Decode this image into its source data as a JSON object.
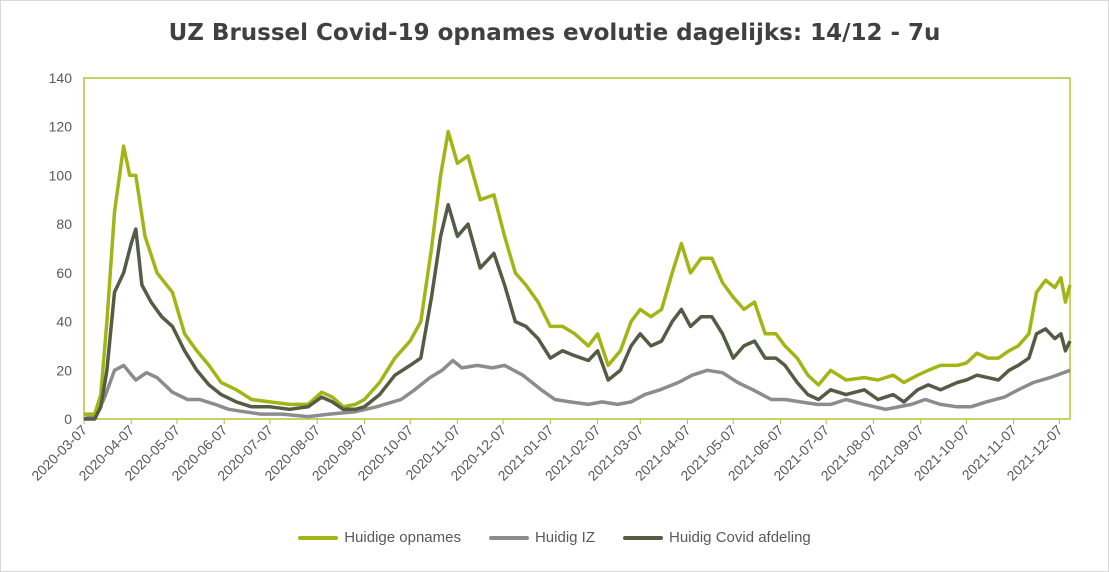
{
  "title": "UZ Brussel Covid-19 opnames evolutie dagelijks: 14/12 - 7u",
  "colors": {
    "opnames": "#a3b516",
    "iz": "#8c8c8c",
    "afdeling": "#545c45",
    "frame": "#b7c233"
  },
  "chart_data": {
    "type": "line",
    "title": "UZ Brussel Covid-19 opnames evolutie dagelijks: 14/12 - 7u",
    "xlabel": "",
    "ylabel": "",
    "ylim": [
      0,
      140
    ],
    "yticks": [
      0,
      20,
      40,
      60,
      80,
      100,
      120,
      140
    ],
    "x_start": "2020-03-07",
    "x_end": "2021-12-14",
    "xticks": [
      "2020-03-07",
      "2020-04-07",
      "2020-05-07",
      "2020-06-07",
      "2020-07-07",
      "2020-08-07",
      "2020-09-07",
      "2020-10-07",
      "2020-11-07",
      "2020-12-07",
      "2021-01-07",
      "2021-02-07",
      "2021-03-07",
      "2021-04-07",
      "2021-05-07",
      "2021-06-07",
      "2021-07-07",
      "2021-08-07",
      "2021-09-07",
      "2021-10-07",
      "2021-11-07",
      "2021-12-07"
    ],
    "grid": false,
    "legend_position": "bottom",
    "series": [
      {
        "name": "Huidige opnames",
        "color": "#a3b516",
        "points": [
          [
            "2020-03-07",
            2
          ],
          [
            "2020-03-14",
            2
          ],
          [
            "2020-03-18",
            10
          ],
          [
            "2020-03-22",
            40
          ],
          [
            "2020-03-27",
            85
          ],
          [
            "2020-04-02",
            112
          ],
          [
            "2020-04-06",
            100
          ],
          [
            "2020-04-10",
            100
          ],
          [
            "2020-04-16",
            75
          ],
          [
            "2020-04-24",
            60
          ],
          [
            "2020-05-04",
            52
          ],
          [
            "2020-05-12",
            35
          ],
          [
            "2020-05-20",
            28
          ],
          [
            "2020-05-28",
            22
          ],
          [
            "2020-06-05",
            15
          ],
          [
            "2020-06-15",
            12
          ],
          [
            "2020-06-25",
            8
          ],
          [
            "2020-07-07",
            7
          ],
          [
            "2020-07-20",
            6
          ],
          [
            "2020-08-01",
            6
          ],
          [
            "2020-08-10",
            11
          ],
          [
            "2020-08-17",
            9
          ],
          [
            "2020-08-24",
            5
          ],
          [
            "2020-09-01",
            6
          ],
          [
            "2020-09-07",
            8
          ],
          [
            "2020-09-17",
            15
          ],
          [
            "2020-09-27",
            25
          ],
          [
            "2020-10-07",
            32
          ],
          [
            "2020-10-14",
            40
          ],
          [
            "2020-10-21",
            70
          ],
          [
            "2020-10-27",
            100
          ],
          [
            "2020-11-01",
            118
          ],
          [
            "2020-11-07",
            105
          ],
          [
            "2020-11-14",
            108
          ],
          [
            "2020-11-22",
            90
          ],
          [
            "2020-12-01",
            92
          ],
          [
            "2020-12-08",
            75
          ],
          [
            "2020-12-15",
            60
          ],
          [
            "2020-12-22",
            55
          ],
          [
            "2020-12-30",
            48
          ],
          [
            "2021-01-07",
            38
          ],
          [
            "2021-01-15",
            38
          ],
          [
            "2021-01-23",
            35
          ],
          [
            "2021-02-01",
            30
          ],
          [
            "2021-02-07",
            35
          ],
          [
            "2021-02-14",
            22
          ],
          [
            "2021-02-22",
            28
          ],
          [
            "2021-03-01",
            40
          ],
          [
            "2021-03-07",
            45
          ],
          [
            "2021-03-14",
            42
          ],
          [
            "2021-03-21",
            45
          ],
          [
            "2021-03-28",
            60
          ],
          [
            "2021-04-03",
            72
          ],
          [
            "2021-04-09",
            60
          ],
          [
            "2021-04-16",
            66
          ],
          [
            "2021-04-23",
            66
          ],
          [
            "2021-04-30",
            56
          ],
          [
            "2021-05-07",
            50
          ],
          [
            "2021-05-14",
            45
          ],
          [
            "2021-05-21",
            48
          ],
          [
            "2021-05-28",
            35
          ],
          [
            "2021-06-04",
            35
          ],
          [
            "2021-06-10",
            30
          ],
          [
            "2021-06-18",
            25
          ],
          [
            "2021-06-25",
            18
          ],
          [
            "2021-07-02",
            14
          ],
          [
            "2021-07-10",
            20
          ],
          [
            "2021-07-20",
            16
          ],
          [
            "2021-08-01",
            17
          ],
          [
            "2021-08-10",
            16
          ],
          [
            "2021-08-20",
            18
          ],
          [
            "2021-08-27",
            15
          ],
          [
            "2021-09-05",
            18
          ],
          [
            "2021-09-12",
            20
          ],
          [
            "2021-09-20",
            22
          ],
          [
            "2021-10-01",
            22
          ],
          [
            "2021-10-07",
            23
          ],
          [
            "2021-10-14",
            27
          ],
          [
            "2021-10-21",
            25
          ],
          [
            "2021-10-28",
            25
          ],
          [
            "2021-11-04",
            28
          ],
          [
            "2021-11-10",
            30
          ],
          [
            "2021-11-17",
            35
          ],
          [
            "2021-11-22",
            52
          ],
          [
            "2021-11-28",
            57
          ],
          [
            "2021-12-04",
            54
          ],
          [
            "2021-12-08",
            58
          ],
          [
            "2021-12-11",
            48
          ],
          [
            "2021-12-14",
            55
          ]
        ]
      },
      {
        "name": "Huidig IZ",
        "color": "#8c8c8c",
        "points": [
          [
            "2020-03-07",
            0
          ],
          [
            "2020-03-15",
            2
          ],
          [
            "2020-03-20",
            8
          ],
          [
            "2020-03-27",
            20
          ],
          [
            "2020-04-02",
            22
          ],
          [
            "2020-04-10",
            16
          ],
          [
            "2020-04-17",
            19
          ],
          [
            "2020-04-24",
            17
          ],
          [
            "2020-05-04",
            11
          ],
          [
            "2020-05-14",
            8
          ],
          [
            "2020-05-22",
            8
          ],
          [
            "2020-06-01",
            6
          ],
          [
            "2020-06-10",
            4
          ],
          [
            "2020-06-20",
            3
          ],
          [
            "2020-07-01",
            2
          ],
          [
            "2020-07-15",
            2
          ],
          [
            "2020-08-01",
            1
          ],
          [
            "2020-08-15",
            2
          ],
          [
            "2020-09-01",
            3
          ],
          [
            "2020-09-15",
            5
          ],
          [
            "2020-10-01",
            8
          ],
          [
            "2020-10-10",
            12
          ],
          [
            "2020-10-20",
            17
          ],
          [
            "2020-10-28",
            20
          ],
          [
            "2020-11-04",
            24
          ],
          [
            "2020-11-10",
            21
          ],
          [
            "2020-11-20",
            22
          ],
          [
            "2020-11-30",
            21
          ],
          [
            "2020-12-08",
            22
          ],
          [
            "2020-12-20",
            18
          ],
          [
            "2021-01-01",
            12
          ],
          [
            "2021-01-10",
            8
          ],
          [
            "2021-01-20",
            7
          ],
          [
            "2021-02-01",
            6
          ],
          [
            "2021-02-10",
            7
          ],
          [
            "2021-02-20",
            6
          ],
          [
            "2021-03-01",
            7
          ],
          [
            "2021-03-10",
            10
          ],
          [
            "2021-03-20",
            12
          ],
          [
            "2021-04-01",
            15
          ],
          [
            "2021-04-10",
            18
          ],
          [
            "2021-04-20",
            20
          ],
          [
            "2021-04-30",
            19
          ],
          [
            "2021-05-10",
            15
          ],
          [
            "2021-05-20",
            12
          ],
          [
            "2021-06-01",
            8
          ],
          [
            "2021-06-10",
            8
          ],
          [
            "2021-06-20",
            7
          ],
          [
            "2021-07-01",
            6
          ],
          [
            "2021-07-10",
            6
          ],
          [
            "2021-07-20",
            8
          ],
          [
            "2021-08-01",
            6
          ],
          [
            "2021-08-15",
            4
          ],
          [
            "2021-09-01",
            6
          ],
          [
            "2021-09-10",
            8
          ],
          [
            "2021-09-20",
            6
          ],
          [
            "2021-10-01",
            5
          ],
          [
            "2021-10-10",
            5
          ],
          [
            "2021-10-20",
            7
          ],
          [
            "2021-11-01",
            9
          ],
          [
            "2021-11-10",
            12
          ],
          [
            "2021-11-20",
            15
          ],
          [
            "2021-12-01",
            17
          ],
          [
            "2021-12-14",
            20
          ]
        ]
      },
      {
        "name": "Huidig Covid afdeling",
        "color": "#545c45",
        "points": [
          [
            "2020-03-07",
            0
          ],
          [
            "2020-03-14",
            0
          ],
          [
            "2020-03-18",
            5
          ],
          [
            "2020-03-22",
            20
          ],
          [
            "2020-03-27",
            52
          ],
          [
            "2020-04-02",
            60
          ],
          [
            "2020-04-07",
            72
          ],
          [
            "2020-04-10",
            78
          ],
          [
            "2020-04-14",
            55
          ],
          [
            "2020-04-20",
            48
          ],
          [
            "2020-04-27",
            42
          ],
          [
            "2020-05-04",
            38
          ],
          [
            "2020-05-12",
            28
          ],
          [
            "2020-05-20",
            20
          ],
          [
            "2020-05-28",
            14
          ],
          [
            "2020-06-05",
            10
          ],
          [
            "2020-06-15",
            7
          ],
          [
            "2020-06-25",
            5
          ],
          [
            "2020-07-07",
            5
          ],
          [
            "2020-07-20",
            4
          ],
          [
            "2020-08-01",
            5
          ],
          [
            "2020-08-10",
            9
          ],
          [
            "2020-08-17",
            7
          ],
          [
            "2020-08-24",
            4
          ],
          [
            "2020-09-01",
            4
          ],
          [
            "2020-09-07",
            5
          ],
          [
            "2020-09-17",
            10
          ],
          [
            "2020-09-27",
            18
          ],
          [
            "2020-10-07",
            22
          ],
          [
            "2020-10-14",
            25
          ],
          [
            "2020-10-21",
            50
          ],
          [
            "2020-10-27",
            75
          ],
          [
            "2020-11-01",
            88
          ],
          [
            "2020-11-07",
            75
          ],
          [
            "2020-11-14",
            80
          ],
          [
            "2020-11-22",
            62
          ],
          [
            "2020-12-01",
            68
          ],
          [
            "2020-12-08",
            55
          ],
          [
            "2020-12-15",
            40
          ],
          [
            "2020-12-22",
            38
          ],
          [
            "2020-12-30",
            33
          ],
          [
            "2021-01-07",
            25
          ],
          [
            "2021-01-15",
            28
          ],
          [
            "2021-01-23",
            26
          ],
          [
            "2021-02-01",
            24
          ],
          [
            "2021-02-07",
            28
          ],
          [
            "2021-02-14",
            16
          ],
          [
            "2021-02-22",
            20
          ],
          [
            "2021-03-01",
            30
          ],
          [
            "2021-03-07",
            35
          ],
          [
            "2021-03-14",
            30
          ],
          [
            "2021-03-21",
            32
          ],
          [
            "2021-03-28",
            40
          ],
          [
            "2021-04-03",
            45
          ],
          [
            "2021-04-09",
            38
          ],
          [
            "2021-04-16",
            42
          ],
          [
            "2021-04-23",
            42
          ],
          [
            "2021-04-30",
            35
          ],
          [
            "2021-05-07",
            25
          ],
          [
            "2021-05-14",
            30
          ],
          [
            "2021-05-21",
            32
          ],
          [
            "2021-05-28",
            25
          ],
          [
            "2021-06-04",
            25
          ],
          [
            "2021-06-10",
            22
          ],
          [
            "2021-06-18",
            15
          ],
          [
            "2021-06-25",
            10
          ],
          [
            "2021-07-02",
            8
          ],
          [
            "2021-07-10",
            12
          ],
          [
            "2021-07-20",
            10
          ],
          [
            "2021-08-01",
            12
          ],
          [
            "2021-08-10",
            8
          ],
          [
            "2021-08-20",
            10
          ],
          [
            "2021-08-27",
            7
          ],
          [
            "2021-09-05",
            12
          ],
          [
            "2021-09-12",
            14
          ],
          [
            "2021-09-20",
            12
          ],
          [
            "2021-10-01",
            15
          ],
          [
            "2021-10-07",
            16
          ],
          [
            "2021-10-14",
            18
          ],
          [
            "2021-10-21",
            17
          ],
          [
            "2021-10-28",
            16
          ],
          [
            "2021-11-04",
            20
          ],
          [
            "2021-11-10",
            22
          ],
          [
            "2021-11-17",
            25
          ],
          [
            "2021-11-22",
            35
          ],
          [
            "2021-11-28",
            37
          ],
          [
            "2021-12-04",
            33
          ],
          [
            "2021-12-08",
            35
          ],
          [
            "2021-12-11",
            28
          ],
          [
            "2021-12-14",
            32
          ]
        ]
      }
    ]
  }
}
